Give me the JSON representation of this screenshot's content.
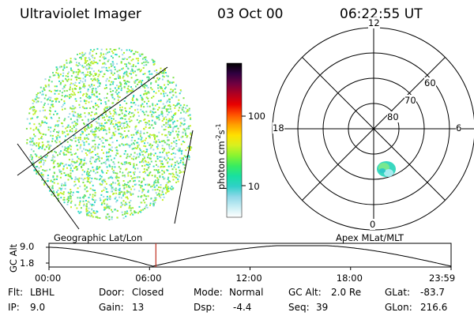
{
  "header": {
    "instrument": "Ultraviolet Imager",
    "date": "03 Oct 00",
    "time": "06:22:55 UT"
  },
  "colorbar": {
    "unit_label": "photon cm",
    "unit_exp1": "-2",
    "unit_s": "s",
    "unit_exp2": "-1",
    "ticks": [
      "100",
      "10"
    ],
    "colors": [
      "#ffffff",
      "#c8eef4",
      "#8fd8e8",
      "#30d0c8",
      "#18e0a0",
      "#38ec60",
      "#88f430",
      "#d8f020",
      "#ffe000",
      "#ffa000",
      "#ff5000",
      "#e80000",
      "#b00020",
      "#700040",
      "#300040",
      "#000000"
    ]
  },
  "left_panel": {
    "label": "Geographic Lat/Lon",
    "dot_colors": [
      "#2fd9c8",
      "#7be34a",
      "#a9ee2a",
      "#c8f028",
      "#5fe090",
      "#9ed8ea"
    ]
  },
  "right_panel": {
    "label": "Apex MLat/MLT",
    "mlt_labels": {
      "top": "12",
      "left": "18",
      "right": "6",
      "bottom": "0"
    },
    "lat_labels": [
      "60",
      "70",
      "80"
    ]
  },
  "timeline": {
    "ylabel": "GC Alt",
    "yticks": [
      "9.0",
      "1.8"
    ],
    "xticks": [
      "00:00",
      "06:00",
      "12:00",
      "18:00",
      "23:59"
    ],
    "current_time_hours": 6.38,
    "marker_color": "#c03020"
  },
  "status": {
    "flt_label": "Flt:",
    "flt_value": "LBHL",
    "ip_label": "IP:",
    "ip_value": "9.0",
    "door_label": "Door:",
    "door_value": "Closed",
    "gain_label": "Gain:",
    "gain_value": "13",
    "mode_label": "Mode:",
    "mode_value": "Normal",
    "dsp_label": "Dsp:",
    "dsp_value": "-4.4",
    "gcalt_label": "GC Alt:",
    "gcalt_value": "2.0 Re",
    "seq_label": "Seq:",
    "seq_value": "39",
    "glat_label": "GLat:",
    "glat_value": "-83.7",
    "glon_label": "GLon:",
    "glon_value": "216.6"
  }
}
